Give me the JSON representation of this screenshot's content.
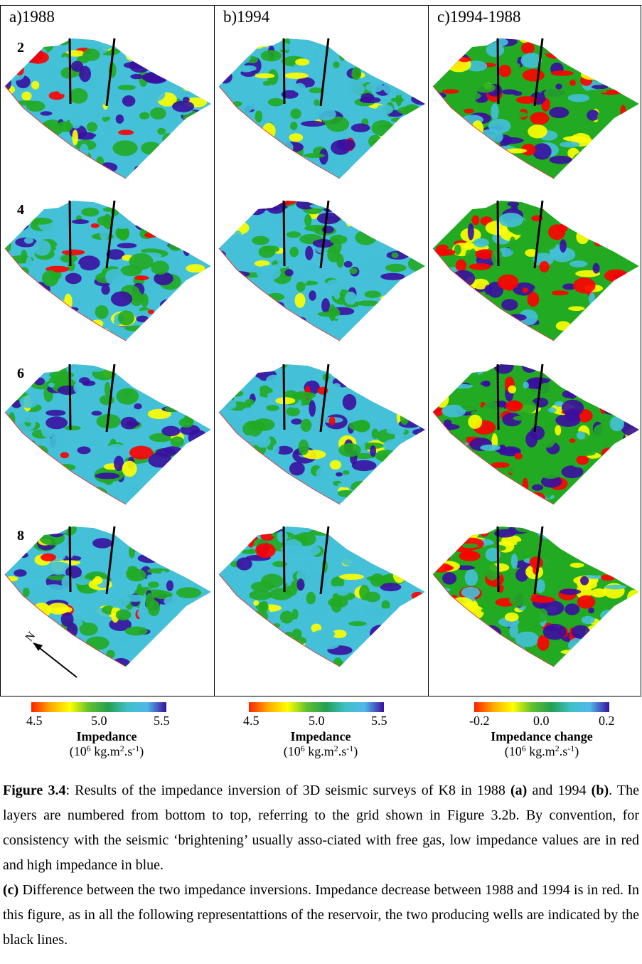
{
  "panels": [
    {
      "title": "a)1988"
    },
    {
      "title": "b)1994"
    },
    {
      "title": "c)1994-1988"
    }
  ],
  "layers": [
    "2",
    "4",
    "6",
    "8"
  ],
  "north_label": "N",
  "colorbars": [
    {
      "min": "4.5",
      "mid": "5.0",
      "max": "5.5",
      "title": "Impedance",
      "units_prefix": "(10",
      "units_exp": "6",
      "units_mid": " kg.m",
      "units_exp2": "2",
      "units_mid2": ".s",
      "units_exp3": "-1",
      "units_suffix": ")"
    },
    {
      "min": "4.5",
      "mid": "5.0",
      "max": "5.5",
      "title": "Impedance",
      "units_prefix": "(10",
      "units_exp": "6",
      "units_mid": " kg.m",
      "units_exp2": "2",
      "units_mid2": ".s",
      "units_exp3": "-1",
      "units_suffix": ")"
    },
    {
      "min": "-0.2",
      "mid": "0.0",
      "max": "0.2",
      "title": "Impedance change",
      "units_prefix": "(10",
      "units_exp": "6",
      "units_mid": " kg.m",
      "units_exp2": "2",
      "units_mid2": ".s",
      "units_exp3": "-1",
      "units_suffix": ")"
    }
  ],
  "caption": {
    "fig_label": "Figure 3.4",
    "p1_a": ": Results of the impedance inversion of 3D seismic surveys of K8 in 1988 ",
    "p1_a_bold": "(a)",
    "p1_b": " and 1994 ",
    "p1_b_bold": "(b)",
    "p1_c": ". The layers are numbered from bottom to top, referring to the grid shown in Figure 3.2b. By convention, for consistency with the seismic ‘brightening’ usually asso-ciated with free gas, low impedance values are in red and high impedance in blue.",
    "p2_bold": "(c)",
    "p2_text": " Difference between the two impedance inversions. Impedance decrease between 1988 and 1994 is in red. In this figure, as in all the following representattions of the reservoir, the two producing wells are indicated by the black lines."
  },
  "colors": {
    "scale": [
      "#ff0000",
      "#ffff00",
      "#22aa22",
      "#44c0d8",
      "#3a10a0"
    ]
  }
}
